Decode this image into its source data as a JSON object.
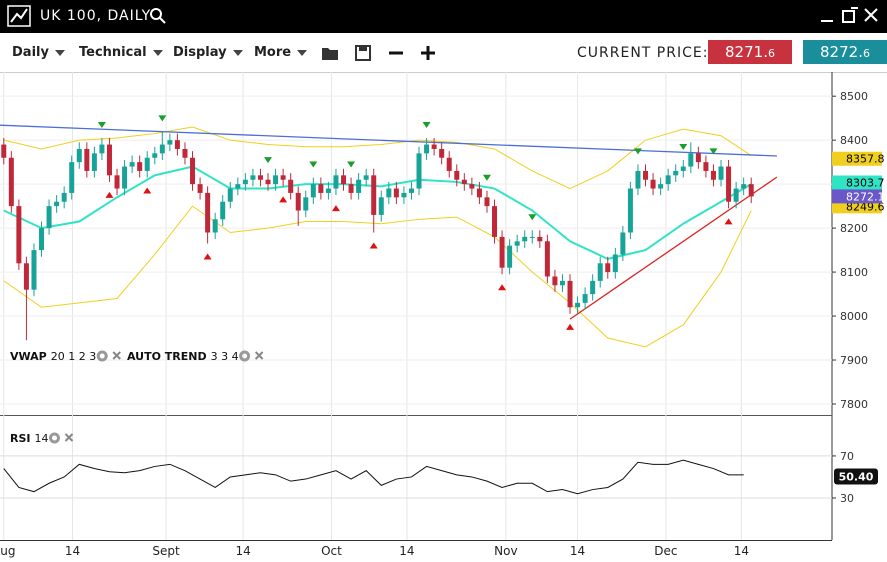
{
  "header": {
    "title": "UK 100, DAILY"
  },
  "toolbar": {
    "menus": [
      "Daily",
      "Technical",
      "Display",
      "More"
    ],
    "price_caption": "CURRENT PRICE:",
    "sell": {
      "main": "8271.",
      "pip": "6"
    },
    "buy": {
      "main": "8272.",
      "pip": "6"
    }
  },
  "chart_data": [
    {
      "type": "candlestick",
      "indicator_labels": [
        {
          "name": "VWAP",
          "params": "20 1 2 3"
        },
        {
          "name": "AUTO TREND",
          "params": "3 3 4"
        }
      ],
      "xlim": [
        -0.5,
        109.7
      ],
      "ylim": [
        7775,
        8555
      ],
      "yticks": [
        7800,
        7900,
        8000,
        8100,
        8200,
        8300,
        8400,
        8500
      ],
      "xticks": [
        {
          "value": 0,
          "label": "Aug"
        },
        {
          "value": 9.1,
          "label": "14"
        },
        {
          "value": 21.5,
          "label": "Sept"
        },
        {
          "value": 31.7,
          "label": "14"
        },
        {
          "value": 43.4,
          "label": "Oct"
        },
        {
          "value": 53.4,
          "label": "14"
        },
        {
          "value": 66.5,
          "label": "Nov"
        },
        {
          "value": 76,
          "label": "14"
        },
        {
          "value": 87.7,
          "label": "Dec"
        },
        {
          "value": 97.7,
          "label": "14"
        }
      ],
      "grid": true,
      "up_color": "#17a398",
      "down_color": "#c0283a",
      "open": [
        8390,
        8360,
        8250,
        8120,
        8060,
        8150,
        8200,
        8250,
        8260,
        8280,
        8350,
        8380,
        8330,
        8370,
        8390,
        8320,
        8290,
        8340,
        8350,
        8330,
        8360,
        8370,
        8390,
        8400,
        8380,
        8360,
        8300,
        8280,
        8190,
        8220,
        8260,
        8290,
        8300,
        8310,
        8320,
        8310,
        8300,
        8320,
        8310,
        8280,
        8240,
        8270,
        8300,
        8280,
        8290,
        8320,
        8300,
        8280,
        8310,
        8320,
        8230,
        8270,
        8290,
        8270,
        8280,
        8290,
        8370,
        8390,
        8380,
        8360,
        8330,
        8310,
        8300,
        8290,
        8270,
        8250,
        8180,
        8110,
        8160,
        8170,
        8180,
        8180,
        8170,
        8090,
        8070,
        8080,
        8020,
        8030,
        8050,
        8080,
        8120,
        8100,
        8140,
        8190,
        8290,
        8330,
        8310,
        8290,
        8300,
        8320,
        8330,
        8340,
        8370,
        8350,
        8330,
        8310,
        8340,
        8260,
        8290,
        8300
      ],
      "high": [
        8405,
        8375,
        8265,
        8135,
        8165,
        8215,
        8265,
        8275,
        8295,
        8365,
        8395,
        8395,
        8385,
        8405,
        8405,
        8335,
        8355,
        8365,
        8365,
        8375,
        8385,
        8420,
        8415,
        8415,
        8395,
        8375,
        8315,
        8295,
        8235,
        8275,
        8305,
        8315,
        8325,
        8335,
        8335,
        8325,
        8335,
        8335,
        8325,
        8295,
        8285,
        8315,
        8315,
        8305,
        8335,
        8335,
        8315,
        8325,
        8335,
        8335,
        8285,
        8305,
        8305,
        8295,
        8305,
        8385,
        8405,
        8405,
        8395,
        8375,
        8345,
        8325,
        8315,
        8305,
        8285,
        8265,
        8195,
        8175,
        8185,
        8195,
        8195,
        8195,
        8185,
        8105,
        8095,
        8095,
        8045,
        8065,
        8095,
        8135,
        8135,
        8155,
        8205,
        8305,
        8345,
        8345,
        8325,
        8315,
        8335,
        8345,
        8355,
        8395,
        8385,
        8365,
        8345,
        8355,
        8355,
        8305,
        8315,
        8315
      ],
      "low": [
        8345,
        8235,
        8105,
        7945,
        8045,
        8135,
        8185,
        8235,
        8245,
        8265,
        8335,
        8315,
        8315,
        8355,
        8305,
        8275,
        8275,
        8325,
        8315,
        8315,
        8345,
        8355,
        8375,
        8365,
        8345,
        8285,
        8265,
        8165,
        8175,
        8205,
        8245,
        8275,
        8285,
        8295,
        8295,
        8285,
        8285,
        8295,
        8265,
        8205,
        8225,
        8255,
        8265,
        8265,
        8275,
        8285,
        8265,
        8265,
        8295,
        8190,
        8215,
        8255,
        8255,
        8255,
        8265,
        8275,
        8355,
        8365,
        8345,
        8315,
        8295,
        8285,
        8275,
        8255,
        8235,
        8165,
        8095,
        8095,
        8145,
        8155,
        8165,
        8155,
        8075,
        8055,
        8055,
        8005,
        8005,
        8015,
        8035,
        8065,
        8085,
        8085,
        8125,
        8175,
        8275,
        8295,
        8275,
        8275,
        8285,
        8305,
        8315,
        8325,
        8335,
        8315,
        8295,
        8295,
        8245,
        8245,
        8275,
        8257
      ],
      "close": [
        8360,
        8250,
        8120,
        8060,
        8150,
        8200,
        8250,
        8260,
        8280,
        8350,
        8380,
        8330,
        8370,
        8390,
        8320,
        8290,
        8340,
        8350,
        8330,
        8360,
        8370,
        8390,
        8400,
        8380,
        8360,
        8300,
        8280,
        8190,
        8220,
        8260,
        8290,
        8300,
        8310,
        8320,
        8310,
        8300,
        8320,
        8310,
        8280,
        8240,
        8270,
        8300,
        8280,
        8290,
        8320,
        8300,
        8280,
        8310,
        8320,
        8230,
        8270,
        8290,
        8270,
        8280,
        8290,
        8370,
        8390,
        8380,
        8360,
        8330,
        8310,
        8300,
        8290,
        8270,
        8250,
        8180,
        8110,
        8160,
        8170,
        8180,
        8180,
        8170,
        8090,
        8070,
        8080,
        8020,
        8030,
        8050,
        8080,
        8120,
        8100,
        8140,
        8190,
        8290,
        8330,
        8310,
        8290,
        8300,
        8320,
        8330,
        8340,
        8370,
        8350,
        8330,
        8310,
        8340,
        8260,
        8290,
        8300,
        8272
      ],
      "bands": [
        {
          "color": "#f0cf1e",
          "width": 1,
          "x": [
            0,
            5,
            10,
            15,
            20,
            25,
            30,
            35,
            40,
            45,
            50,
            55,
            60,
            65,
            70,
            75,
            80,
            85,
            90,
            95,
            99
          ],
          "values": [
            8400,
            8380,
            8400,
            8405,
            8415,
            8430,
            8400,
            8390,
            8385,
            8385,
            8390,
            8400,
            8395,
            8380,
            8330,
            8290,
            8330,
            8400,
            8425,
            8410,
            8365
          ]
        },
        {
          "color": "#2fe3c5",
          "width": 2,
          "x": [
            0,
            5,
            10,
            15,
            20,
            25,
            30,
            35,
            40,
            45,
            50,
            55,
            60,
            65,
            70,
            75,
            80,
            85,
            90,
            95,
            99
          ],
          "values": [
            8240,
            8200,
            8215,
            8270,
            8320,
            8340,
            8290,
            8290,
            8300,
            8300,
            8295,
            8310,
            8305,
            8290,
            8240,
            8170,
            8130,
            8150,
            8210,
            8260,
            8300
          ]
        },
        {
          "color": "#f0cf1e",
          "width": 1,
          "x": [
            0,
            5,
            10,
            15,
            20,
            25,
            30,
            35,
            40,
            45,
            50,
            55,
            60,
            65,
            70,
            75,
            80,
            85,
            90,
            95,
            99
          ],
          "values": [
            8080,
            8020,
            8030,
            8040,
            8140,
            8250,
            8190,
            8200,
            8215,
            8215,
            8210,
            8220,
            8225,
            8180,
            8100,
            8030,
            7950,
            7930,
            7980,
            8100,
            8240
          ]
        }
      ],
      "trend_lines": [
        {
          "color": "#4a6fd6",
          "x": [
            -0.5,
            102.4
          ],
          "values": [
            8434,
            8364
          ]
        },
        {
          "color": "#e02020",
          "x": [
            75,
            102.4
          ],
          "values": [
            7993,
            8316
          ]
        }
      ],
      "sell_signals": [
        13,
        21,
        35,
        41,
        46,
        56,
        64,
        70,
        84,
        90,
        94
      ],
      "buy_signals": [
        14,
        19,
        27,
        37,
        44,
        49,
        66,
        75,
        96
      ],
      "price_labels": [
        {
          "value": 8357.8,
          "color": "#f0cf1e",
          "text_color": "#000"
        },
        {
          "value": 8249.6,
          "color": "#f0cf1e",
          "text_color": "#000"
        },
        {
          "value": 8303.7,
          "color": "#2fe3c5",
          "text_color": "#000"
        },
        {
          "value": 8272.1,
          "color": "#6a58c8",
          "text_color": "#fff"
        }
      ]
    },
    {
      "type": "line",
      "name": "RSI",
      "params": "14",
      "color": "#111",
      "xlim": [
        -0.5,
        109.7
      ],
      "ylim": [
        -10,
        108
      ],
      "yticks": [
        30,
        70
      ],
      "x": [
        0,
        2,
        4,
        6,
        8,
        10,
        12,
        14,
        16,
        18,
        20,
        22,
        24,
        26,
        28,
        30,
        32,
        34,
        36,
        38,
        40,
        42,
        44,
        46,
        48,
        50,
        52,
        54,
        56,
        58,
        60,
        62,
        64,
        66,
        68,
        70,
        72,
        74,
        76,
        78,
        80,
        82,
        84,
        86,
        88,
        90,
        92,
        94,
        96,
        98
      ],
      "values": [
        58,
        40,
        36,
        44,
        50,
        62,
        58,
        55,
        54,
        56,
        60,
        62,
        56,
        48,
        40,
        50,
        52,
        54,
        52,
        46,
        48,
        52,
        56,
        48,
        56,
        42,
        48,
        50,
        60,
        56,
        52,
        50,
        46,
        40,
        44,
        44,
        36,
        38,
        34,
        38,
        40,
        48,
        64,
        62,
        62,
        66,
        62,
        58,
        52,
        52
      ],
      "last": {
        "value": 50.4,
        "label": "50.40"
      }
    }
  ]
}
